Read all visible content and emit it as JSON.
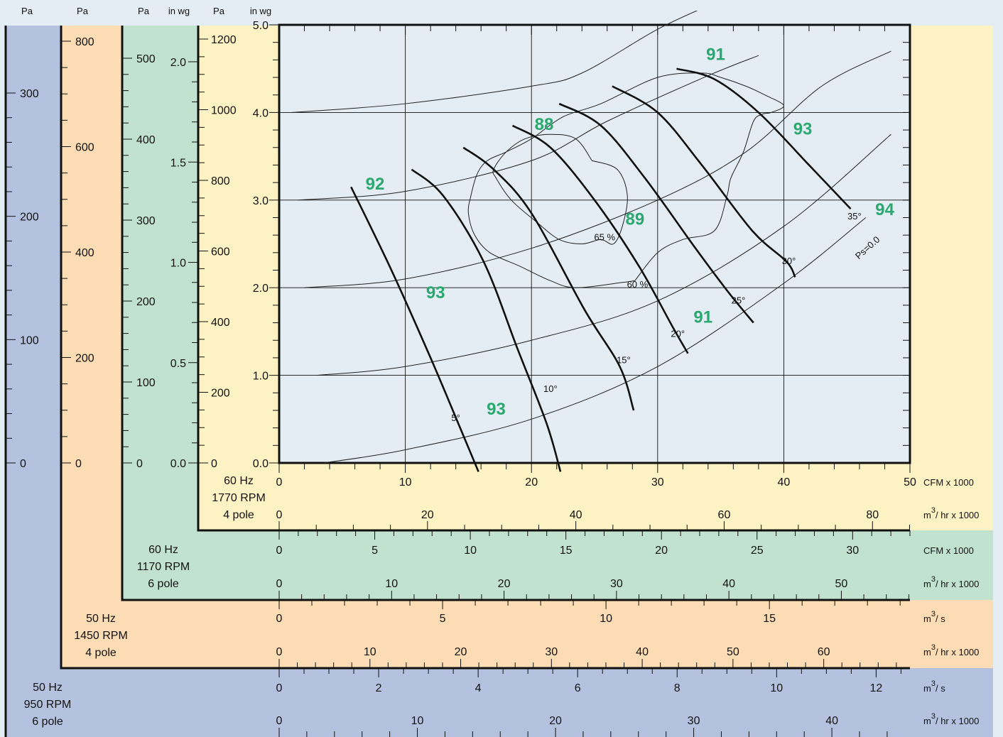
{
  "chart_data": {
    "type": "line",
    "title": "",
    "x_range": [
      0,
      50
    ],
    "y_range": [
      0,
      5
    ],
    "grid": true,
    "colors": {
      "blue_band": "#b4c2e0",
      "orange_band": "#fcdcb4",
      "green_band": "#c2e2d0",
      "yellow_band": "#fdf2c4",
      "plot_bg": "#e4edf4",
      "label_green": "#2aa870"
    },
    "pressure_axes": [
      {
        "header": "Pa",
        "ticks": [
          "0",
          "100",
          "200",
          "300"
        ]
      },
      {
        "header": "Pa",
        "ticks": [
          "0",
          "200",
          "400",
          "600",
          "800"
        ]
      },
      {
        "header": "Pa",
        "ticks": [
          "0",
          "100",
          "200",
          "300",
          "400",
          "500"
        ]
      },
      {
        "header": "in wg",
        "ticks": [
          "0.0",
          "0.5",
          "1.0",
          "1.5",
          "2.0"
        ]
      },
      {
        "header": "Pa",
        "ticks": [
          "0",
          "200",
          "400",
          "600",
          "800",
          "1000",
          "1200"
        ]
      },
      {
        "header": "in wg",
        "ticks": [
          "0.0",
          "1.0",
          "2.0",
          "3.0",
          "4.0",
          "5.0"
        ]
      }
    ],
    "flow_panels": [
      {
        "lines": [
          "60 Hz",
          "1770 RPM",
          "4 pole"
        ],
        "scales": [
          {
            "unit_base": "CFM x 1000",
            "unit_sup": "",
            "ticks": [
              "0",
              "10",
              "20",
              "30",
              "40",
              "50"
            ]
          },
          {
            "unit_base": "m",
            "unit_sup": "3",
            "unit_rest": "/ hr x 1000",
            "ticks": [
              "0",
              "20",
              "40",
              "60",
              "80"
            ]
          }
        ]
      },
      {
        "lines": [
          "60 Hz",
          "1170 RPM",
          "6 pole"
        ],
        "scales": [
          {
            "unit_base": "CFM x 1000",
            "unit_sup": "",
            "ticks": [
              "0",
              "5",
              "10",
              "15",
              "20",
              "25",
              "30"
            ]
          },
          {
            "unit_base": "m",
            "unit_sup": "3",
            "unit_rest": "/ hr x 1000",
            "ticks": [
              "0",
              "10",
              "20",
              "30",
              "40",
              "50"
            ]
          }
        ]
      },
      {
        "lines": [
          "50 Hz",
          "1450 RPM",
          "4 pole"
        ],
        "scales": [
          {
            "unit_base": "m",
            "unit_sup": "3",
            "unit_rest": "/ s",
            "ticks": [
              "0",
              "5",
              "10",
              "15"
            ]
          },
          {
            "unit_base": "m",
            "unit_sup": "3",
            "unit_rest": "/ hr x 1000",
            "ticks": [
              "0",
              "10",
              "20",
              "30",
              "40",
              "50",
              "60"
            ]
          }
        ]
      },
      {
        "lines": [
          "50 Hz",
          "950 RPM",
          "6 pole"
        ],
        "scales": [
          {
            "unit_base": "m",
            "unit_sup": "3",
            "unit_rest": "/ s",
            "ticks": [
              "0",
              "2",
              "4",
              "6",
              "8",
              "10",
              "12"
            ]
          },
          {
            "unit_base": "m",
            "unit_sup": "3",
            "unit_rest": "/ hr x 1000",
            "ticks": [
              "0",
              "10",
              "20",
              "30",
              "40"
            ]
          }
        ]
      }
    ],
    "blade_angle_curves": [
      {
        "label": "5°",
        "points": [
          [
            5.7,
            3.15
          ],
          [
            8.9,
            2.2
          ],
          [
            12.0,
            1.2
          ],
          [
            14.2,
            0.45
          ],
          [
            15.8,
            -0.1
          ]
        ]
      },
      {
        "label": "10°",
        "points": [
          [
            10.5,
            3.35
          ],
          [
            13.0,
            3.05
          ],
          [
            16.2,
            2.3
          ],
          [
            18.9,
            1.3
          ],
          [
            21.2,
            0.45
          ],
          [
            22.3,
            -0.1
          ]
        ]
      },
      {
        "label": "15°",
        "points": [
          [
            14.6,
            3.6
          ],
          [
            17.0,
            3.35
          ],
          [
            20.0,
            2.85
          ],
          [
            24.2,
            1.75
          ],
          [
            27.0,
            1.1
          ],
          [
            28.1,
            0.6
          ]
        ]
      },
      {
        "label": "20°",
        "points": [
          [
            18.5,
            3.85
          ],
          [
            21.5,
            3.6
          ],
          [
            25.0,
            3.0
          ],
          [
            28.5,
            2.25
          ],
          [
            31.2,
            1.55
          ],
          [
            32.4,
            1.25
          ]
        ]
      },
      {
        "label": "25°",
        "points": [
          [
            22.2,
            4.1
          ],
          [
            25.5,
            3.85
          ],
          [
            29.0,
            3.25
          ],
          [
            33.0,
            2.45
          ],
          [
            35.6,
            1.95
          ],
          [
            37.6,
            1.6
          ]
        ]
      },
      {
        "label": "30°",
        "points": [
          [
            26.4,
            4.3
          ],
          [
            30.0,
            4.0
          ],
          [
            33.5,
            3.4
          ],
          [
            37.5,
            2.65
          ],
          [
            40.2,
            2.3
          ],
          [
            40.9,
            2.12
          ]
        ]
      },
      {
        "label": "35°",
        "points": [
          [
            31.5,
            4.5
          ],
          [
            34.5,
            4.38
          ],
          [
            38.0,
            4.0
          ],
          [
            42.0,
            3.4
          ],
          [
            45.3,
            2.9
          ]
        ]
      }
    ],
    "system_curves": [
      {
        "points": [
          [
            1.0,
            4.0
          ],
          [
            10.0,
            4.1
          ],
          [
            20.0,
            4.3
          ],
          [
            24.0,
            4.45
          ],
          [
            30.0,
            4.95
          ],
          [
            34.5,
            5.25
          ]
        ]
      },
      {
        "points": [
          [
            1.5,
            3.0
          ],
          [
            10.0,
            3.1
          ],
          [
            20.0,
            3.45
          ],
          [
            26.0,
            3.9
          ],
          [
            34.0,
            4.42
          ],
          [
            38.0,
            4.65
          ]
        ]
      },
      {
        "points": [
          [
            2.0,
            2.0
          ],
          [
            10.0,
            2.1
          ],
          [
            20.0,
            2.45
          ],
          [
            30.0,
            3.0
          ],
          [
            37.0,
            3.55
          ],
          [
            43.0,
            4.3
          ],
          [
            48.5,
            4.7
          ]
        ]
      },
      {
        "points": [
          [
            3.0,
            1.0
          ],
          [
            10.0,
            1.1
          ],
          [
            20.0,
            1.4
          ],
          [
            30.0,
            1.85
          ],
          [
            40.0,
            2.7
          ],
          [
            48.5,
            3.75
          ]
        ]
      },
      {
        "label": "Ps=0.0",
        "points": [
          [
            3.5,
            0.0
          ],
          [
            10.0,
            0.15
          ],
          [
            20.0,
            0.5
          ],
          [
            30.0,
            1.1
          ],
          [
            40.0,
            2.05
          ],
          [
            46.5,
            2.8
          ]
        ]
      }
    ],
    "efficiency_contours": [
      {
        "label": "65 %",
        "points": [
          [
            24.8,
            3.45
          ],
          [
            26.8,
            3.35
          ],
          [
            27.6,
            3.05
          ],
          [
            27.2,
            2.7
          ],
          [
            26.5,
            2.5
          ],
          [
            25.5,
            2.55
          ],
          [
            24.0,
            2.5
          ],
          [
            22.2,
            2.55
          ],
          [
            20.4,
            2.75
          ],
          [
            18.4,
            3.0
          ],
          [
            17.2,
            3.25
          ],
          [
            17.0,
            3.35
          ],
          [
            18.0,
            3.55
          ],
          [
            19.5,
            3.7
          ],
          [
            21.5,
            3.75
          ],
          [
            23.5,
            3.7
          ],
          [
            24.8,
            3.45
          ]
        ]
      },
      {
        "label": "60 %",
        "points": [
          [
            28.2,
            2.08
          ],
          [
            30.0,
            2.4
          ],
          [
            32.0,
            2.55
          ],
          [
            34.5,
            2.65
          ],
          [
            35.5,
            3.05
          ],
          [
            35.8,
            3.25
          ],
          [
            36.8,
            3.55
          ],
          [
            37.6,
            3.9
          ],
          [
            38.3,
            3.98
          ],
          [
            39.0,
            4.0
          ],
          [
            40.0,
            4.08
          ],
          [
            38.5,
            4.2
          ],
          [
            37.0,
            4.3
          ],
          [
            35.0,
            4.4
          ],
          [
            33.5,
            4.45
          ],
          [
            30.0,
            4.4
          ],
          [
            25.5,
            4.1
          ],
          [
            22.5,
            3.95
          ],
          [
            20.0,
            3.7
          ],
          [
            18.0,
            3.55
          ],
          [
            16.5,
            3.45
          ],
          [
            15.7,
            3.3
          ],
          [
            15.2,
            3.05
          ],
          [
            15.0,
            2.85
          ],
          [
            15.5,
            2.6
          ],
          [
            16.7,
            2.4
          ],
          [
            19.0,
            2.25
          ],
          [
            21.5,
            2.08
          ],
          [
            23.5,
            2.0
          ],
          [
            27.2,
            2.06
          ],
          [
            28.2,
            2.08
          ]
        ]
      }
    ],
    "annotations": [
      {
        "text": "91",
        "x": 34.6,
        "y": 4.6
      },
      {
        "text": "88",
        "x": 21.0,
        "y": 3.8
      },
      {
        "text": "93",
        "x": 41.5,
        "y": 3.75
      },
      {
        "text": "92",
        "x": 7.6,
        "y": 3.12
      },
      {
        "text": "94",
        "x": 48.0,
        "y": 2.83
      },
      {
        "text": "89",
        "x": 28.2,
        "y": 2.72
      },
      {
        "text": "93",
        "x": 12.4,
        "y": 1.88
      },
      {
        "text": "91",
        "x": 33.6,
        "y": 1.6
      },
      {
        "text": "93",
        "x": 17.2,
        "y": 0.55
      }
    ],
    "angle_labels": [
      {
        "text": "5°",
        "x": 14.0,
        "y": 0.48
      },
      {
        "text": "10°",
        "x": 21.5,
        "y": 0.81
      },
      {
        "text": "15°",
        "x": 27.3,
        "y": 1.14
      },
      {
        "text": "20°",
        "x": 31.6,
        "y": 1.44
      },
      {
        "text": "25°",
        "x": 36.4,
        "y": 1.82
      },
      {
        "text": "30°",
        "x": 40.4,
        "y": 2.27
      },
      {
        "text": "35°",
        "x": 45.6,
        "y": 2.78
      }
    ],
    "contour_labels": [
      {
        "text": "65 %",
        "x": 25.8,
        "y": 2.54
      },
      {
        "text": "60 %",
        "x": 28.4,
        "y": 2.0
      }
    ],
    "ps_label": {
      "text": "Ps=0.0",
      "x": 46.8,
      "y": 2.43
    }
  }
}
